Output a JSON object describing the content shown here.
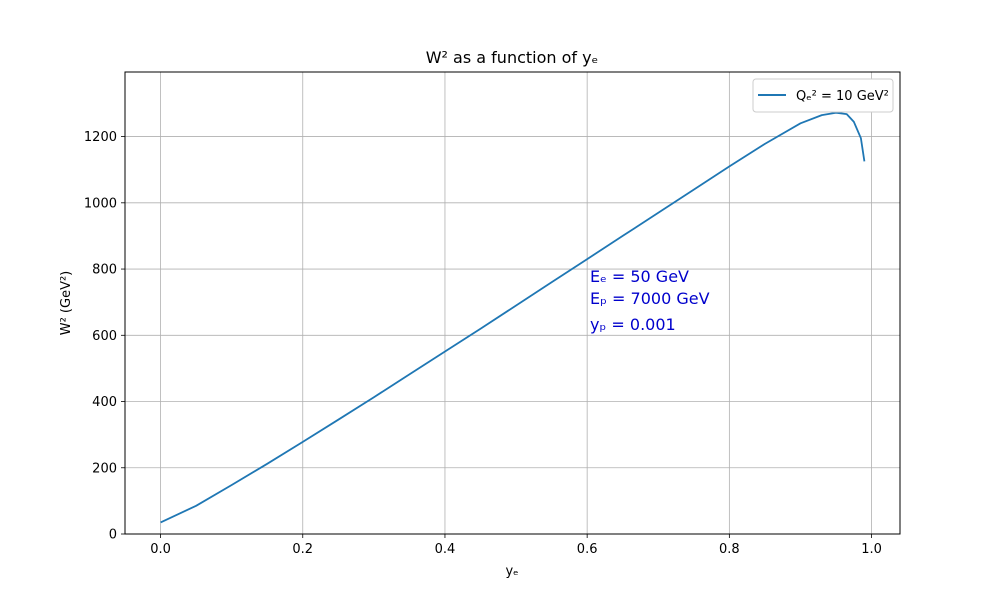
{
  "chart_data": {
    "type": "line",
    "title": "W² as a function of yₑ",
    "xlabel": "yₑ",
    "ylabel": "W² (GeV²)",
    "xlim": [
      -0.05,
      1.04
    ],
    "ylim": [
      0,
      1395
    ],
    "xticks": [
      0.0,
      0.2,
      0.4,
      0.6,
      0.8,
      1.0
    ],
    "xtick_labels": [
      "0.0",
      "0.2",
      "0.4",
      "0.6",
      "0.8",
      "1.0"
    ],
    "yticks": [
      0,
      200,
      400,
      600,
      800,
      1000,
      1200
    ],
    "ytick_labels": [
      "0",
      "200",
      "400",
      "600",
      "800",
      "1000",
      "1200"
    ],
    "grid": true,
    "legend_position": "top-right",
    "series": [
      {
        "name": "Qₑ² = 10 GeV²",
        "color": "#1f77b4",
        "x": [
          0.0,
          0.05,
          0.1,
          0.15,
          0.2,
          0.25,
          0.3,
          0.35,
          0.4,
          0.45,
          0.5,
          0.55,
          0.6,
          0.65,
          0.7,
          0.75,
          0.8,
          0.85,
          0.9,
          0.93,
          0.95,
          0.965,
          0.975,
          0.985,
          0.99
        ],
        "y": [
          35,
          85,
          148,
          212,
          278,
          345,
          413,
          482,
          551,
          620,
          690,
          760,
          830,
          900,
          970,
          1040,
          1110,
          1178,
          1240,
          1265,
          1272,
          1268,
          1245,
          1195,
          1125
        ]
      }
    ],
    "annotations": [
      {
        "text": "Eₑ = 50 GeV",
        "color": "#0000cc"
      },
      {
        "text": "Eₚ = 7000 GeV",
        "color": "#0000cc"
      },
      {
        "text": "yₚ = 0.001",
        "color": "#0000cc"
      }
    ]
  }
}
